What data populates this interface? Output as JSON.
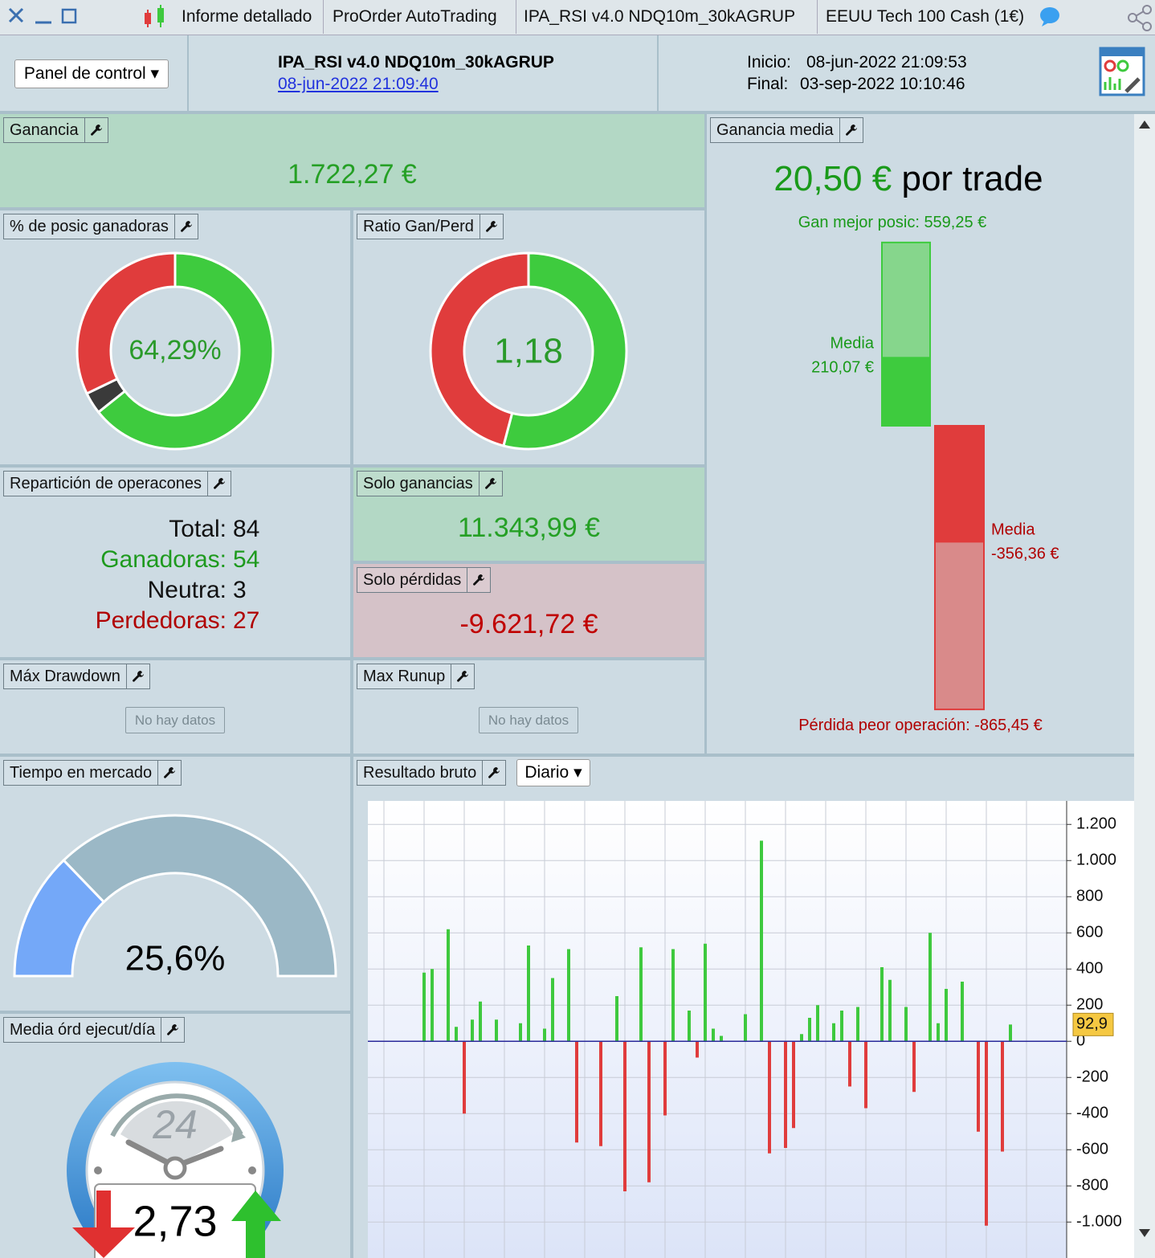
{
  "tabs": [
    "Informe detallado",
    "ProOrder AutoTrading",
    "IPA_RSI v4.0 NDQ10m_30kAGRUP",
    "EEUU Tech 100 Cash (1€)"
  ],
  "header": {
    "panel_button": "Panel de control",
    "title": "IPA_RSI v4.0 NDQ10m_30kAGRUP",
    "date_link": "08-jun-2022 21:09:40",
    "start_label": "Inicio:",
    "start": "08-jun-2022 21:09:53",
    "end_label": "Final:",
    "end": "03-sep-2022 10:10:46"
  },
  "ganancia": {
    "title": "Ganancia",
    "value": "1.722,27 €"
  },
  "pct_ganadoras": {
    "title": "% de posic ganadoras",
    "value": "64,29%"
  },
  "ratio": {
    "title": "Ratio Gan/Perd",
    "value": "1,18"
  },
  "reparticion": {
    "title": "Repartición de operacones",
    "rows": [
      {
        "label": "Total:",
        "value": 84
      },
      {
        "label": "Ganadoras:",
        "value": 54
      },
      {
        "label": "Neutra:",
        "value": 3
      },
      {
        "label": "Perdedoras:",
        "value": 27
      }
    ]
  },
  "solo_ganancias": {
    "title": "Solo ganancias",
    "value": 11343.99,
    "label": "11.343,99 €"
  },
  "solo_perdidas": {
    "title": "Solo pérdidas",
    "value": -9621.72,
    "label": "-9.621,72 €"
  },
  "max_drawdown": {
    "title": "Máx Drawdown",
    "message": "No hay datos"
  },
  "max_runup": {
    "title": "Max Runup",
    "message": "No hay datos"
  },
  "ganancia_media": {
    "title": "Ganancia media",
    "value": "20,50 €",
    "suffix": "por trade",
    "best_label": "Gan mejor posic:",
    "best": {
      "value": 559.25,
      "label": "559,25 €"
    },
    "mean_gain": {
      "name": "Media",
      "value": 210.07,
      "label": "210,07 €"
    },
    "mean_loss": {
      "name": "Media",
      "value": -356.36,
      "label": "-356,36 €"
    },
    "worst_label": "Pérdida peor operación:",
    "worst": {
      "value": -865.45,
      "label": "-865,45 €"
    }
  },
  "tiempo_mercado": {
    "title": "Tiempo en mercado",
    "value": 25.6,
    "label": "25,6%"
  },
  "media_ordenes": {
    "title": "Media órd ejecut/día",
    "clock": "24",
    "value": "2,73"
  },
  "resultado_bruto": {
    "period": "Diario"
  },
  "chart_data": {
    "type": "bar",
    "title": "Resultado bruto",
    "pos_color": "#3ec93e",
    "neg_color": "#e03c3c",
    "values": [
      null,
      null,
      null,
      null,
      null,
      380,
      400,
      null,
      620,
      80,
      -400,
      120,
      220,
      null,
      120,
      null,
      null,
      100,
      530,
      null,
      70,
      350,
      null,
      510,
      -560,
      null,
      null,
      -580,
      null,
      250,
      -830,
      null,
      520,
      -780,
      null,
      -410,
      510,
      null,
      170,
      -90,
      540,
      70,
      30,
      null,
      null,
      150,
      null,
      1110,
      -620,
      null,
      -590,
      -480,
      40,
      130,
      200,
      null,
      100,
      170,
      -250,
      190,
      -370,
      null,
      410,
      340,
      null,
      190,
      -280,
      null,
      600,
      100,
      290,
      null,
      330,
      null,
      -500,
      -1020,
      null,
      -610,
      92.9,
      null,
      null,
      null,
      null,
      null,
      null
    ],
    "last_label": "92,9",
    "ylim": [
      -1150,
      1330
    ],
    "yticks": [
      {
        "value": -1000,
        "label": "-1.000"
      },
      {
        "value": -800,
        "label": "-800"
      },
      {
        "value": -600,
        "label": "-600"
      },
      {
        "value": -400,
        "label": "-400"
      },
      {
        "value": -200,
        "label": "-200"
      },
      0,
      200,
      400,
      600,
      800,
      {
        "value": 1000,
        "label": "1.000"
      },
      {
        "value": 1200,
        "label": "1.200"
      }
    ],
    "grid": true
  }
}
